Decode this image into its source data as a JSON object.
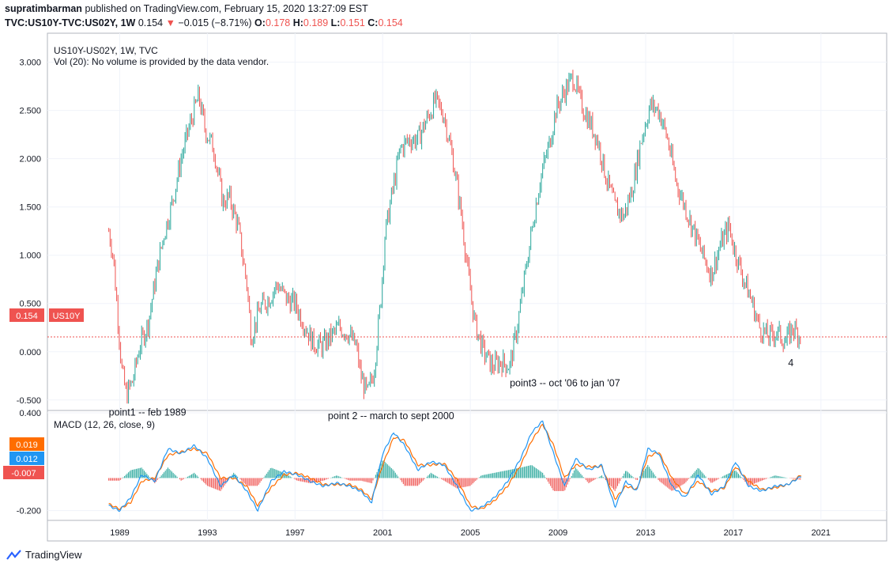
{
  "header": {
    "publisher": "supratimbarman",
    "published_text": "published on TradingView.com, February 15, 2020 13:27:09 EST",
    "symbol": "TVC:US10Y-TVC:US02Y, 1W",
    "last": "0.154",
    "change": "−0.015 (−8.71%)",
    "open_label": "O:",
    "open": "0.178",
    "high_label": "H:",
    "high": "0.189",
    "low_label": "L:",
    "low": "0.151",
    "close_label": "C:",
    "close": "0.154"
  },
  "legend": {
    "main_title": "US10Y-US02Y, 1W, TVC",
    "vol_note": "Vol (20): No volume is provided by the data vendor.",
    "macd_title": "MACD (12, 26, close, 9)"
  },
  "price_badge": {
    "value": "0.154",
    "label": "US10Y"
  },
  "macd_badges": {
    "signal": "0.019",
    "macd": "0.012",
    "histogram": "-0.007"
  },
  "colors": {
    "up": "#26a69a",
    "down": "#ef5350",
    "macd_line": "#2196f3",
    "signal_line": "#ff6d00",
    "grid": "#f0f3fa",
    "current_line": "#ef5350"
  },
  "footer": {
    "brand": "TradingView"
  },
  "chart_data": [
    {
      "type": "candlestick",
      "ylim": [
        -0.6,
        3.3
      ],
      "yticks": [
        "3.000",
        "2.500",
        "2.000",
        "1.500",
        "1.000",
        "0.500",
        "0.000",
        "-0.500"
      ],
      "ytick_values": [
        3.0,
        2.5,
        2.0,
        1.5,
        1.0,
        0.5,
        0.0,
        -0.5
      ],
      "xlim": [
        1985.7,
        2024.0
      ],
      "xticks": [
        "1989",
        "1993",
        "1997",
        "2001",
        "2005",
        "2009",
        "2013",
        "2017",
        "2021"
      ],
      "xtick_values": [
        1989,
        1993,
        1997,
        2001,
        2005,
        2009,
        2013,
        2017,
        2021
      ],
      "grid": true,
      "current_value": 0.154,
      "series": [
        {
          "x": [
            1988.5,
            1988.7,
            1988.9,
            1989.1,
            1989.3,
            1989.6,
            1989.9,
            1990.3,
            1990.7,
            1991.0,
            1991.4,
            1991.8,
            1992.2,
            1992.6,
            1992.9,
            1993.3,
            1993.7,
            1994.0,
            1994.4,
            1994.8,
            1995.0,
            1995.4,
            1995.8,
            1996.2,
            1996.6,
            1997.0,
            1997.4,
            1997.8,
            1998.2,
            1998.6,
            1999.0,
            1999.4,
            1999.8,
            2000.0,
            2000.3,
            2000.6,
            2000.9,
            2001.1,
            2001.4,
            2001.8,
            2002.2,
            2002.6,
            2003.0,
            2003.4,
            2003.8,
            2004.2,
            2004.6,
            2004.9,
            2005.2,
            2005.6,
            2006.0,
            2006.4,
            2006.8,
            2007.1,
            2007.5,
            2007.9,
            2008.2,
            2008.6,
            2008.9,
            2009.3,
            2009.7,
            2010.0,
            2010.4,
            2010.8,
            2011.2,
            2011.6,
            2012.0,
            2012.4,
            2012.8,
            2013.2,
            2013.6,
            2014.0,
            2014.4,
            2014.8,
            2015.2,
            2015.6,
            2016.0,
            2016.4,
            2016.8,
            2017.0,
            2017.4,
            2017.8,
            2018.2,
            2018.6,
            2019.0,
            2019.4,
            2019.7,
            2020.0,
            2020.1
          ],
          "close": [
            1.25,
            1.0,
            0.4,
            -0.2,
            -0.45,
            -0.3,
            0.05,
            0.3,
            0.85,
            1.2,
            1.55,
            2.0,
            2.35,
            2.65,
            2.3,
            2.1,
            1.55,
            1.6,
            1.3,
            0.7,
            0.15,
            0.45,
            0.55,
            0.7,
            0.55,
            0.5,
            0.3,
            0.1,
            0.05,
            0.15,
            0.25,
            0.2,
            0.05,
            -0.25,
            -0.45,
            -0.2,
            0.5,
            1.2,
            1.6,
            2.1,
            2.2,
            2.2,
            2.4,
            2.6,
            2.45,
            2.0,
            1.4,
            0.8,
            0.3,
            0.0,
            -0.15,
            -0.1,
            -0.15,
            0.2,
            0.8,
            1.4,
            1.8,
            2.15,
            2.5,
            2.7,
            2.85,
            2.6,
            2.4,
            2.2,
            1.8,
            1.5,
            1.4,
            1.7,
            2.2,
            2.55,
            2.5,
            2.2,
            1.75,
            1.5,
            1.25,
            1.0,
            0.8,
            1.1,
            1.3,
            1.1,
            0.8,
            0.55,
            0.25,
            0.15,
            0.2,
            0.1,
            0.25,
            0.18,
            0.154
          ]
        }
      ],
      "annotations": [
        {
          "text": "point1 -- feb 1989",
          "x": 1988.5,
          "y": -0.66
        },
        {
          "text": "point 2 -- march to sept 2000",
          "x": 1998.5,
          "y": -0.7
        },
        {
          "text": "point3 -- oct '06 to jan '07",
          "x": 2006.8,
          "y": -0.36
        },
        {
          "text": "4",
          "x": 2019.5,
          "y": -0.15
        }
      ]
    },
    {
      "type": "macd",
      "ylim": [
        -0.26,
        0.41
      ],
      "yticks": [
        "0.400",
        "-0.200"
      ],
      "ytick_values": [
        0.4,
        -0.2
      ],
      "series": [
        {
          "name": "MACD",
          "x": [
            1988.5,
            1989.0,
            1989.5,
            1990.0,
            1990.6,
            1991.2,
            1991.8,
            1992.4,
            1993.0,
            1993.6,
            1994.2,
            1994.8,
            1995.3,
            1995.9,
            1996.5,
            1997.1,
            1997.7,
            1998.3,
            1998.9,
            1999.5,
            2000.0,
            2000.5,
            2001.0,
            2001.5,
            2002.0,
            2002.6,
            2003.2,
            2003.8,
            2004.4,
            2005.0,
            2005.5,
            2006.1,
            2006.7,
            2007.3,
            2007.8,
            2008.3,
            2008.8,
            2009.3,
            2009.8,
            2010.4,
            2011.0,
            2011.6,
            2012.1,
            2012.6,
            2013.1,
            2013.6,
            2014.2,
            2014.8,
            2015.4,
            2016.0,
            2016.6,
            2017.1,
            2017.7,
            2018.3,
            2018.9,
            2019.5,
            2020.1
          ],
          "values": [
            -0.17,
            -0.2,
            -0.12,
            0.02,
            -0.02,
            0.18,
            0.15,
            0.2,
            0.12,
            -0.05,
            0.02,
            -0.08,
            -0.2,
            -0.02,
            0.04,
            0.02,
            -0.02,
            -0.05,
            -0.03,
            -0.05,
            -0.08,
            -0.15,
            0.15,
            0.28,
            0.2,
            0.05,
            0.1,
            0.08,
            -0.05,
            -0.2,
            -0.18,
            -0.12,
            -0.02,
            0.12,
            0.28,
            0.35,
            0.15,
            -0.05,
            0.12,
            0.05,
            0.08,
            -0.18,
            -0.02,
            -0.08,
            0.18,
            0.15,
            -0.05,
            -0.12,
            0.02,
            -0.1,
            -0.05,
            0.1,
            -0.05,
            -0.08,
            -0.05,
            -0.04,
            0.012
          ]
        },
        {
          "name": "Signal",
          "x": [
            1988.5,
            1989.0,
            1989.5,
            1990.0,
            1990.6,
            1991.2,
            1991.8,
            1992.4,
            1993.0,
            1993.6,
            1994.2,
            1994.8,
            1995.3,
            1995.9,
            1996.5,
            1997.1,
            1997.7,
            1998.3,
            1998.9,
            1999.5,
            2000.0,
            2000.5,
            2001.0,
            2001.5,
            2002.0,
            2002.6,
            2003.2,
            2003.8,
            2004.4,
            2005.0,
            2005.5,
            2006.1,
            2006.7,
            2007.3,
            2007.8,
            2008.3,
            2008.8,
            2009.3,
            2009.8,
            2010.4,
            2011.0,
            2011.6,
            2012.1,
            2012.6,
            2013.1,
            2013.6,
            2014.2,
            2014.8,
            2015.4,
            2016.0,
            2016.6,
            2017.1,
            2017.7,
            2018.3,
            2018.9,
            2019.5,
            2020.1
          ],
          "values": [
            -0.16,
            -0.19,
            -0.15,
            -0.02,
            0.0,
            0.14,
            0.16,
            0.18,
            0.15,
            0.0,
            0.0,
            -0.05,
            -0.17,
            -0.06,
            0.02,
            0.03,
            0.0,
            -0.04,
            -0.04,
            -0.04,
            -0.07,
            -0.13,
            0.08,
            0.25,
            0.23,
            0.08,
            0.08,
            0.09,
            -0.01,
            -0.17,
            -0.19,
            -0.14,
            -0.05,
            0.08,
            0.23,
            0.33,
            0.2,
            0.0,
            0.08,
            0.07,
            0.07,
            -0.13,
            -0.05,
            -0.07,
            0.13,
            0.16,
            0.0,
            -0.1,
            -0.02,
            -0.08,
            -0.06,
            0.07,
            -0.02,
            -0.07,
            -0.06,
            -0.04,
            0.019
          ]
        }
      ]
    }
  ]
}
